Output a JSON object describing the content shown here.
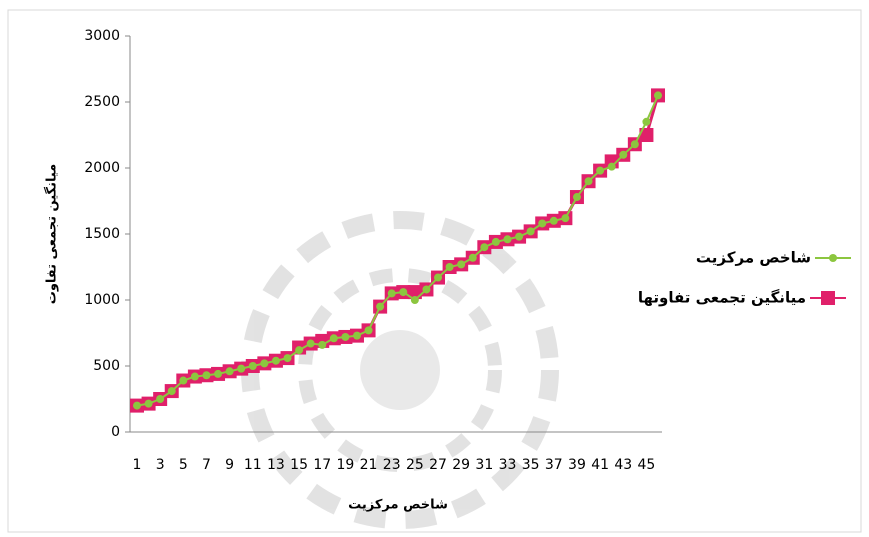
{
  "chart_data": {
    "type": "line",
    "categories": [
      "1",
      null,
      "3",
      null,
      "5",
      null,
      "7",
      null,
      "9",
      null,
      "11",
      null,
      "13",
      null,
      "15",
      null,
      "17",
      null,
      "19",
      null,
      "21",
      null,
      "23",
      null,
      "25",
      null,
      "27",
      null,
      "29",
      null,
      "31",
      null,
      "33",
      null,
      "35",
      null,
      "37",
      null,
      "39",
      null,
      "41",
      null,
      "43",
      null,
      "45",
      null
    ],
    "x_label": "شاخص مرکزیت",
    "y_label": "میانگین تجمعی تفاوت",
    "ylim": [
      0,
      3000
    ],
    "yticks": [
      0,
      500,
      1000,
      1500,
      2000,
      2500,
      3000
    ],
    "grid": false,
    "legend": "right",
    "series": [
      {
        "name": "شاخص مرکزیت",
        "color": "#8cc63f",
        "marker": "circle",
        "values": [
          200,
          215,
          250,
          310,
          390,
          420,
          430,
          440,
          460,
          480,
          500,
          520,
          540,
          560,
          620,
          670,
          660,
          710,
          720,
          730,
          770,
          950,
          1050,
          1060,
          1000,
          1080,
          1170,
          1250,
          1270,
          1320,
          1400,
          1440,
          1460,
          1480,
          1520,
          1580,
          1600,
          1620,
          1780,
          1900,
          1980,
          2010,
          2100,
          2180,
          2350,
          2550
        ]
      },
      {
        "name": "میانگین تجمعی تفاوتها",
        "color": "#e0206a",
        "marker": "square",
        "values": [
          200,
          215,
          250,
          310,
          390,
          420,
          430,
          440,
          460,
          480,
          500,
          520,
          540,
          560,
          640,
          670,
          690,
          710,
          720,
          730,
          770,
          950,
          1050,
          1060,
          1060,
          1080,
          1170,
          1250,
          1270,
          1320,
          1400,
          1440,
          1460,
          1480,
          1520,
          1580,
          1600,
          1620,
          1780,
          1900,
          1980,
          2050,
          2100,
          2180,
          2250,
          2550
        ]
      }
    ]
  }
}
